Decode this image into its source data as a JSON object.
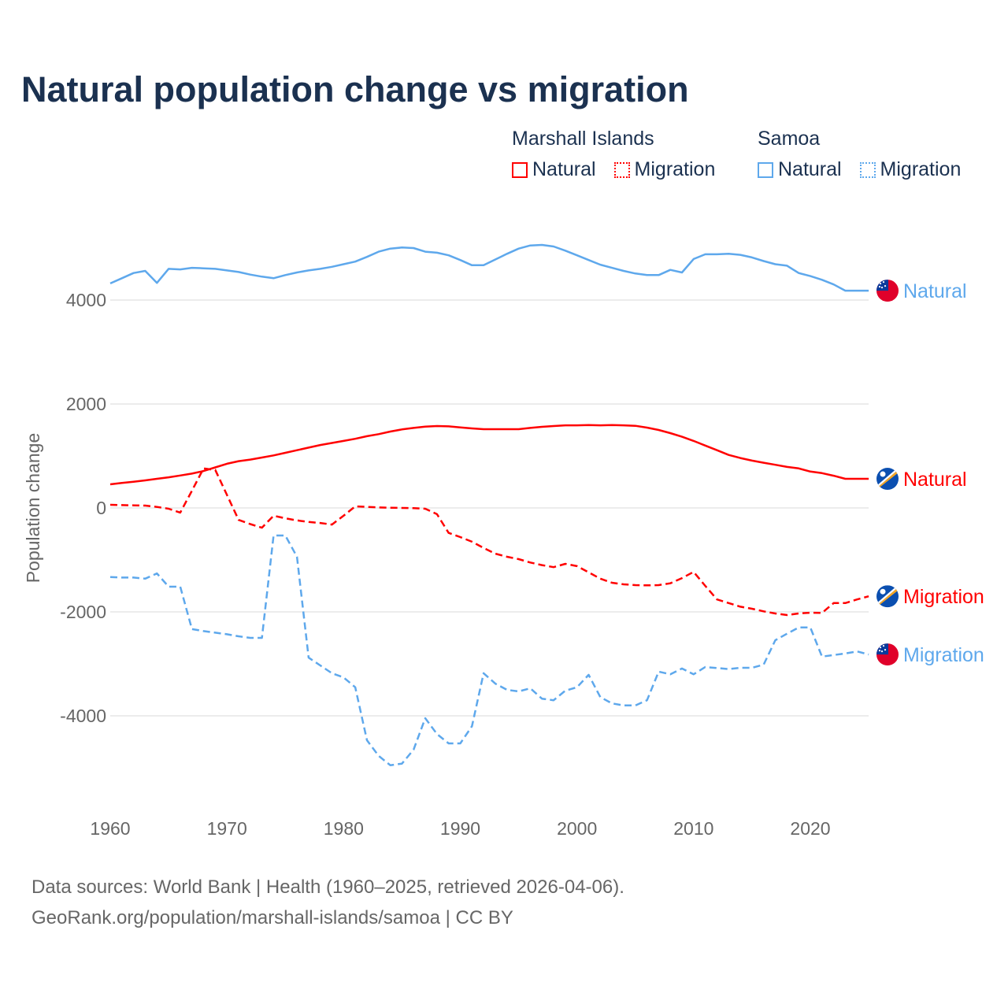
{
  "title": "Natural population change vs migration",
  "legend": {
    "groups": [
      {
        "name": "Marshall Islands",
        "items": [
          {
            "label": "Natural",
            "style": "solid",
            "color": "#ff0000"
          },
          {
            "label": "Migration",
            "style": "dotted",
            "color": "#ff0000"
          }
        ]
      },
      {
        "name": "Samoa",
        "items": [
          {
            "label": "Natural",
            "style": "solid",
            "color": "#5ea8ec"
          },
          {
            "label": "Migration",
            "style": "dotted",
            "color": "#5ea8ec"
          }
        ]
      }
    ]
  },
  "footer": {
    "line1": "Data sources: World Bank | Health (1960–2025, retrieved 2026-04-06).",
    "line2": "GeoRank.org/population/marshall-islands/samoa | CC BY"
  },
  "chart_data": {
    "type": "line",
    "title": "Natural population change vs migration",
    "xlabel": "",
    "ylabel": "Population change",
    "xlim": [
      1960,
      2025
    ],
    "ylim": [
      -5500,
      5500
    ],
    "xticks": [
      1960,
      1970,
      1980,
      1990,
      2000,
      2010,
      2020
    ],
    "yticks": [
      -4000,
      -2000,
      0,
      2000,
      4000
    ],
    "grid": true,
    "x_start": 1960,
    "series": [
      {
        "name": "Samoa Natural",
        "country": "Samoa",
        "end_label": "Natural",
        "color": "#5ea8ec",
        "dash": false,
        "flag": "samoa",
        "values": [
          4320,
          4420,
          4520,
          4560,
          4330,
          4600,
          4590,
          4620,
          4610,
          4600,
          4570,
          4540,
          4490,
          4450,
          4420,
          4480,
          4530,
          4570,
          4600,
          4640,
          4690,
          4740,
          4830,
          4930,
          4990,
          5010,
          5000,
          4930,
          4910,
          4860,
          4770,
          4670,
          4670,
          4780,
          4890,
          4990,
          5050,
          5060,
          5030,
          4950,
          4860,
          4770,
          4680,
          4620,
          4560,
          4510,
          4480,
          4480,
          4580,
          4530,
          4790,
          4880,
          4880,
          4890,
          4870,
          4820,
          4750,
          4690,
          4660,
          4520,
          4460,
          4390,
          4300,
          4180,
          4180,
          4180
        ]
      },
      {
        "name": "Marshall Islands Natural",
        "country": "Marshall Islands",
        "end_label": "Natural",
        "color": "#ff0000",
        "dash": false,
        "flag": "marshall",
        "values": [
          455,
          480,
          505,
          530,
          560,
          590,
          625,
          660,
          710,
          780,
          850,
          900,
          930,
          970,
          1010,
          1060,
          1110,
          1160,
          1210,
          1250,
          1290,
          1330,
          1380,
          1420,
          1470,
          1510,
          1540,
          1565,
          1575,
          1570,
          1550,
          1530,
          1515,
          1515,
          1515,
          1515,
          1540,
          1560,
          1575,
          1590,
          1590,
          1595,
          1590,
          1595,
          1590,
          1580,
          1545,
          1500,
          1440,
          1370,
          1290,
          1200,
          1110,
          1020,
          960,
          910,
          870,
          830,
          790,
          760,
          700,
          670,
          620,
          560,
          560,
          560
        ]
      },
      {
        "name": "Marshall Islands Migration",
        "country": "Marshall Islands",
        "end_label": "Migration",
        "color": "#ff0000",
        "dash": true,
        "flag": "marshall",
        "values": [
          60,
          55,
          50,
          45,
          20,
          -15,
          -90,
          330,
          760,
          730,
          250,
          -230,
          -310,
          -380,
          -150,
          -200,
          -240,
          -270,
          -290,
          -320,
          -150,
          30,
          20,
          10,
          5,
          0,
          -5,
          -15,
          -120,
          -480,
          -560,
          -650,
          -770,
          -880,
          -940,
          -985,
          -1050,
          -1100,
          -1140,
          -1075,
          -1120,
          -1240,
          -1360,
          -1440,
          -1470,
          -1485,
          -1490,
          -1485,
          -1450,
          -1350,
          -1230,
          -1500,
          -1760,
          -1830,
          -1900,
          -1940,
          -1990,
          -2030,
          -2060,
          -2030,
          -2015,
          -2020,
          -1830,
          -1830,
          -1760,
          -1700
        ]
      },
      {
        "name": "Samoa Migration",
        "country": "Samoa",
        "end_label": "Migration",
        "color": "#5ea8ec",
        "dash": true,
        "flag": "samoa",
        "values": [
          -1330,
          -1340,
          -1340,
          -1360,
          -1260,
          -1515,
          -1515,
          -2330,
          -2370,
          -2400,
          -2430,
          -2470,
          -2500,
          -2500,
          -530,
          -530,
          -940,
          -2880,
          -3030,
          -3180,
          -3260,
          -3450,
          -4470,
          -4770,
          -4950,
          -4920,
          -4650,
          -4045,
          -4350,
          -4530,
          -4530,
          -4200,
          -3180,
          -3380,
          -3500,
          -3530,
          -3470,
          -3670,
          -3700,
          -3515,
          -3450,
          -3210,
          -3640,
          -3760,
          -3800,
          -3800,
          -3700,
          -3150,
          -3200,
          -3090,
          -3200,
          -3060,
          -3080,
          -3100,
          -3075,
          -3075,
          -3015,
          -2545,
          -2420,
          -2300,
          -2300,
          -2860,
          -2830,
          -2800,
          -2760,
          -2820
        ]
      }
    ]
  }
}
